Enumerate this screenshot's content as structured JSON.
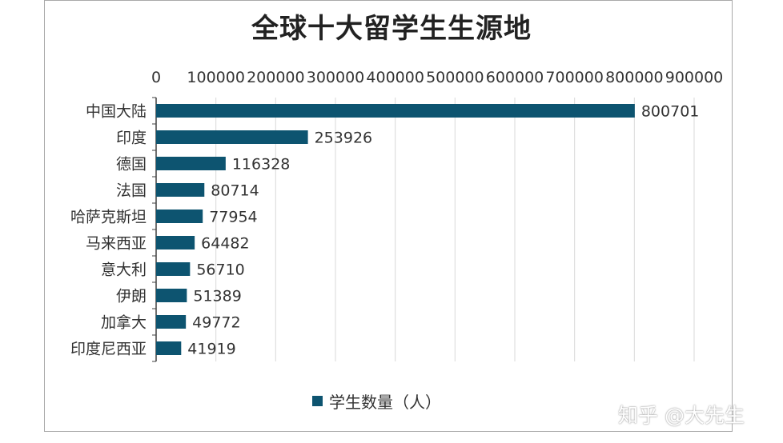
{
  "watermark": "知乎 @大先生",
  "colors": {
    "bar": "#0d5470",
    "grid": "#d9d9d9",
    "axis": "#404040"
  },
  "chart_data": {
    "type": "bar",
    "orientation": "horizontal",
    "title": "全球十大留学生生源地",
    "categories": [
      "中国大陆",
      "印度",
      "德国",
      "法国",
      "哈萨克斯坦",
      "马来西亚",
      "意大利",
      "伊朗",
      "加拿大",
      "印度尼西亚"
    ],
    "series": [
      {
        "name": "学生数量（人）",
        "values": [
          800701,
          253926,
          116328,
          80714,
          77954,
          64482,
          56710,
          51389,
          49772,
          41919
        ]
      }
    ],
    "xlim": [
      0,
      900000
    ],
    "xticks": [
      0,
      100000,
      200000,
      300000,
      400000,
      500000,
      600000,
      700000,
      800000,
      900000
    ],
    "xaxis_position": "top",
    "grid": "vertical",
    "legend": "bottom"
  }
}
